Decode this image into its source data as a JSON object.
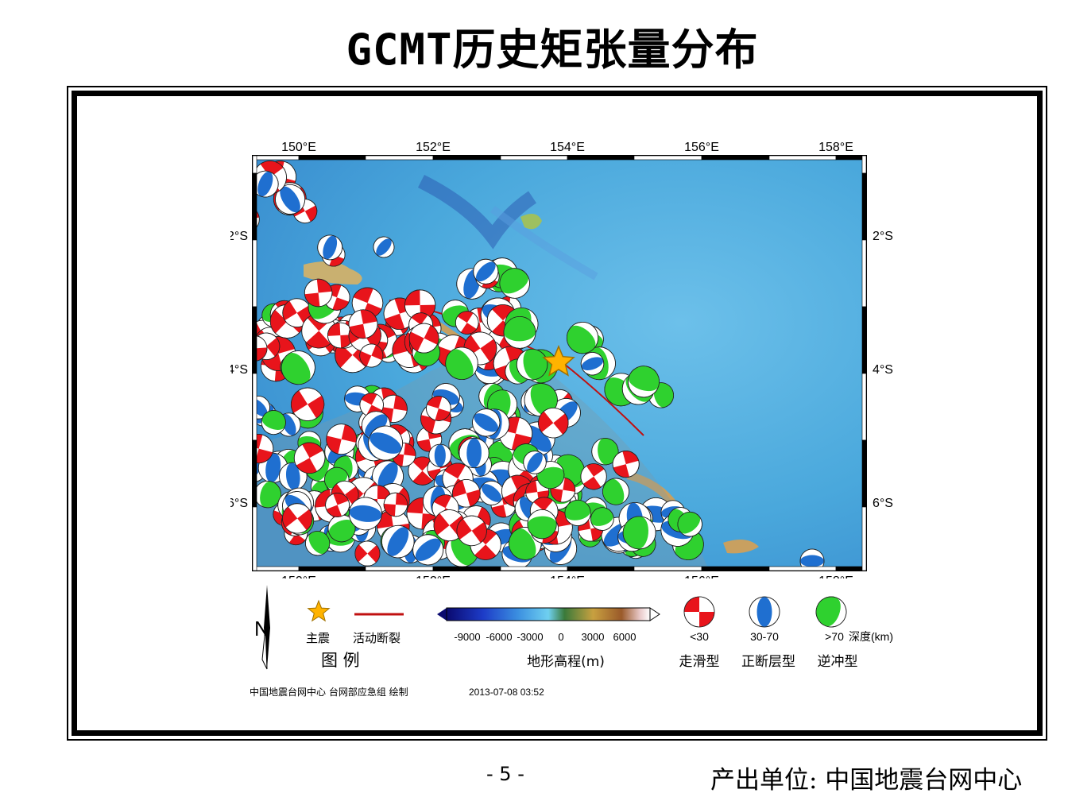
{
  "title": "GCMT历史矩张量分布",
  "map": {
    "lon_ticks": [
      "150°E",
      "152°E",
      "154°E",
      "156°E",
      "158°E"
    ],
    "lat_ticks": [
      "2°S",
      "4°S",
      "6°S"
    ],
    "ocean_color": "#4aa8dc",
    "plate_colors": {
      "strike_slip": "#e8141b",
      "normal": "#1f6fd0",
      "thrust": "#2fd12f"
    },
    "mainshock_color": "#ffb300",
    "north_label": "N"
  },
  "legend": {
    "mainshock_label": "主震",
    "fault_label": "活动断裂",
    "legend_title": "图  例",
    "colorbar_ticks": [
      "-9000",
      "-6000",
      "-3000",
      "0",
      "3000",
      "6000"
    ],
    "colorbar_title": "地形高程(m)",
    "depth_labels": [
      "<30",
      "30-70",
      ">70"
    ],
    "depth_unit": "深度(km)",
    "mech_labels": [
      "走滑型",
      "正断层型",
      "逆冲型"
    ]
  },
  "credit": {
    "producer": "中国地震台网中心 台网部应急组 绘制",
    "timestamp": "2013-07-08 03:52"
  },
  "footer": {
    "page": "- 5 -",
    "unit": "产出单位: 中国地震台网中心"
  }
}
